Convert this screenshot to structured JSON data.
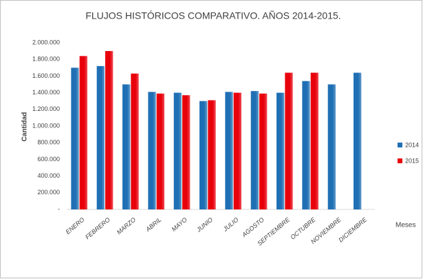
{
  "chart_data": {
    "type": "bar",
    "title": "FLUJOS HISTÓRICOS COMPARATIVO. AÑOS 2014-2015.",
    "y_label": "Cantidad",
    "x_label": "Meses",
    "categories": [
      "ENERO",
      "FEBRERO",
      "MARZO",
      "ABRIL",
      "MAYO",
      "JUNIO",
      "JULIO",
      "AGOSTO",
      "SEPTIEMBRE",
      "OCTUBRE",
      "NOVIEMBRE",
      "DICIEMBRE"
    ],
    "series": [
      {
        "name": "2014",
        "color": "#1f6fb4",
        "values": [
          1700000,
          1720000,
          1500000,
          1410000,
          1400000,
          1300000,
          1410000,
          1420000,
          1400000,
          1540000,
          1500000,
          1640000
        ]
      },
      {
        "name": "2015",
        "color": "#e8000b",
        "values": [
          1840000,
          1900000,
          1630000,
          1390000,
          1370000,
          1310000,
          1400000,
          1390000,
          1640000,
          1640000,
          null,
          null
        ]
      }
    ],
    "ylim": [
      0,
      2000000
    ],
    "yticks": [
      {
        "value": 0,
        "label": "-"
      },
      {
        "value": 200000,
        "label": "200.000"
      },
      {
        "value": 400000,
        "label": "400.000"
      },
      {
        "value": 600000,
        "label": "600.000"
      },
      {
        "value": 800000,
        "label": "800.000"
      },
      {
        "value": 1000000,
        "label": "1.000.000"
      },
      {
        "value": 1200000,
        "label": "1.200.000"
      },
      {
        "value": 1400000,
        "label": "1.400.000"
      },
      {
        "value": 1600000,
        "label": "1.600.000"
      },
      {
        "value": 1800000,
        "label": "1.800.000"
      },
      {
        "value": 2000000,
        "label": "2.000.000"
      }
    ],
    "grid": false,
    "legend": "right"
  }
}
